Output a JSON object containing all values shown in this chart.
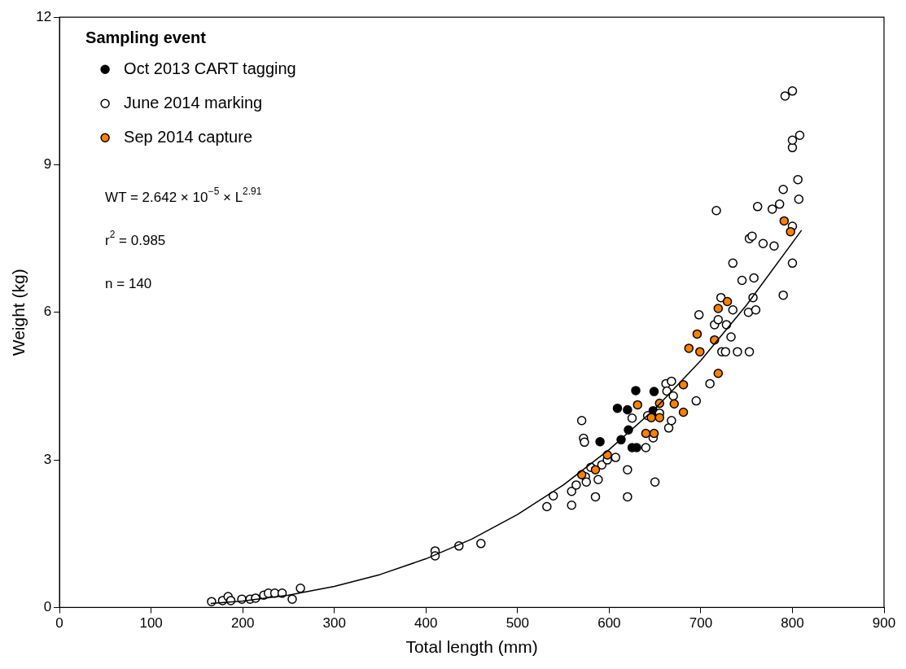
{
  "chart_data": {
    "type": "scatter",
    "xlabel": "Total length (mm)",
    "ylabel": "Weight (kg)",
    "legend_title": "Sampling event",
    "legend": "top left",
    "grid": false,
    "marker": "circle",
    "xlim": [
      0,
      900
    ],
    "xticks": [
      0,
      100,
      200,
      300,
      400,
      500,
      600,
      700,
      800,
      900
    ],
    "ylim": [
      0,
      12
    ],
    "yticks": [
      0,
      3,
      6,
      9,
      12
    ],
    "annotations": [
      "WT = 2.642 × 10$^{−5}$ × L$^{2.91}$",
      "r$^{2}$ = 0.985",
      "n = 140"
    ],
    "series": [
      {
        "name": "Oct 2013 CART tagging",
        "color": "#000000",
        "x": [
          629,
          649,
          609,
          620,
          621,
          590,
          613,
          625,
          630,
          648
        ],
        "values": [
          4.41,
          4.39,
          4.05,
          4.02,
          3.61,
          3.37,
          3.41,
          3.25,
          3.25,
          4.0
        ]
      },
      {
        "name": "June 2014 marking",
        "color": "#ffffff",
        "x": [
          166,
          178,
          184,
          187,
          199,
          208,
          214,
          223,
          228,
          235,
          243,
          254,
          263,
          410,
          410,
          436,
          460,
          532,
          539,
          559,
          559,
          564,
          570,
          572,
          573,
          574,
          575,
          580,
          585,
          588,
          592,
          598,
          607,
          620,
          620,
          625,
          640,
          642,
          648,
          650,
          655,
          662,
          663,
          665,
          668,
          668,
          670,
          695,
          698,
          710,
          715,
          717,
          719,
          722,
          723,
          727,
          728,
          733,
          735,
          735,
          740,
          745,
          752,
          753,
          753,
          756,
          757,
          758,
          760,
          762,
          768,
          778,
          780,
          786,
          790,
          790,
          792,
          800,
          800,
          800,
          800,
          800,
          806,
          807,
          808
        ],
        "values": [
          0.12,
          0.14,
          0.22,
          0.14,
          0.17,
          0.17,
          0.19,
          0.25,
          0.29,
          0.29,
          0.29,
          0.17,
          0.39,
          1.15,
          1.05,
          1.25,
          1.3,
          2.05,
          2.27,
          2.08,
          2.36,
          2.49,
          3.8,
          3.44,
          3.36,
          2.66,
          2.55,
          2.85,
          2.25,
          2.6,
          2.9,
          3.0,
          3.05,
          2.8,
          2.25,
          3.85,
          3.25,
          3.9,
          3.45,
          2.55,
          3.95,
          4.55,
          4.4,
          3.65,
          4.6,
          3.8,
          4.3,
          4.2,
          5.95,
          4.55,
          5.75,
          8.07,
          5.85,
          6.3,
          5.2,
          5.2,
          5.75,
          5.5,
          6.05,
          7.0,
          5.2,
          6.65,
          6.0,
          5.2,
          7.5,
          7.55,
          6.3,
          6.7,
          6.05,
          8.15,
          7.4,
          8.1,
          7.35,
          8.2,
          8.5,
          6.35,
          10.4,
          10.5,
          9.35,
          9.5,
          7.0,
          7.75,
          8.7,
          8.3,
          9.6
        ]
      },
      {
        "name": "Sep 2014 capture",
        "color": "#ff8000",
        "x": [
          570,
          585,
          598,
          631,
          646,
          655,
          671,
          681,
          681,
          640,
          649,
          655,
          687,
          699,
          696,
          715,
          719,
          729,
          719,
          791,
          798
        ],
        "values": [
          2.7,
          2.8,
          3.1,
          4.12,
          3.86,
          3.86,
          4.14,
          4.53,
          3.97,
          3.54,
          3.54,
          4.15,
          5.27,
          5.2,
          5.56,
          5.44,
          6.08,
          6.22,
          4.76,
          7.86,
          7.64
        ]
      },
      {
        "type": "line",
        "color": "#000000",
        "marker": "none",
        "x": [
          165,
          200,
          250,
          300,
          350,
          400,
          450,
          500,
          550,
          600,
          650,
          700,
          750,
          810
        ],
        "values": [
          0.08,
          0.13,
          0.25,
          0.43,
          0.67,
          0.99,
          1.39,
          1.89,
          2.49,
          3.21,
          4.04,
          5.02,
          6.15,
          7.67
        ]
      }
    ]
  }
}
